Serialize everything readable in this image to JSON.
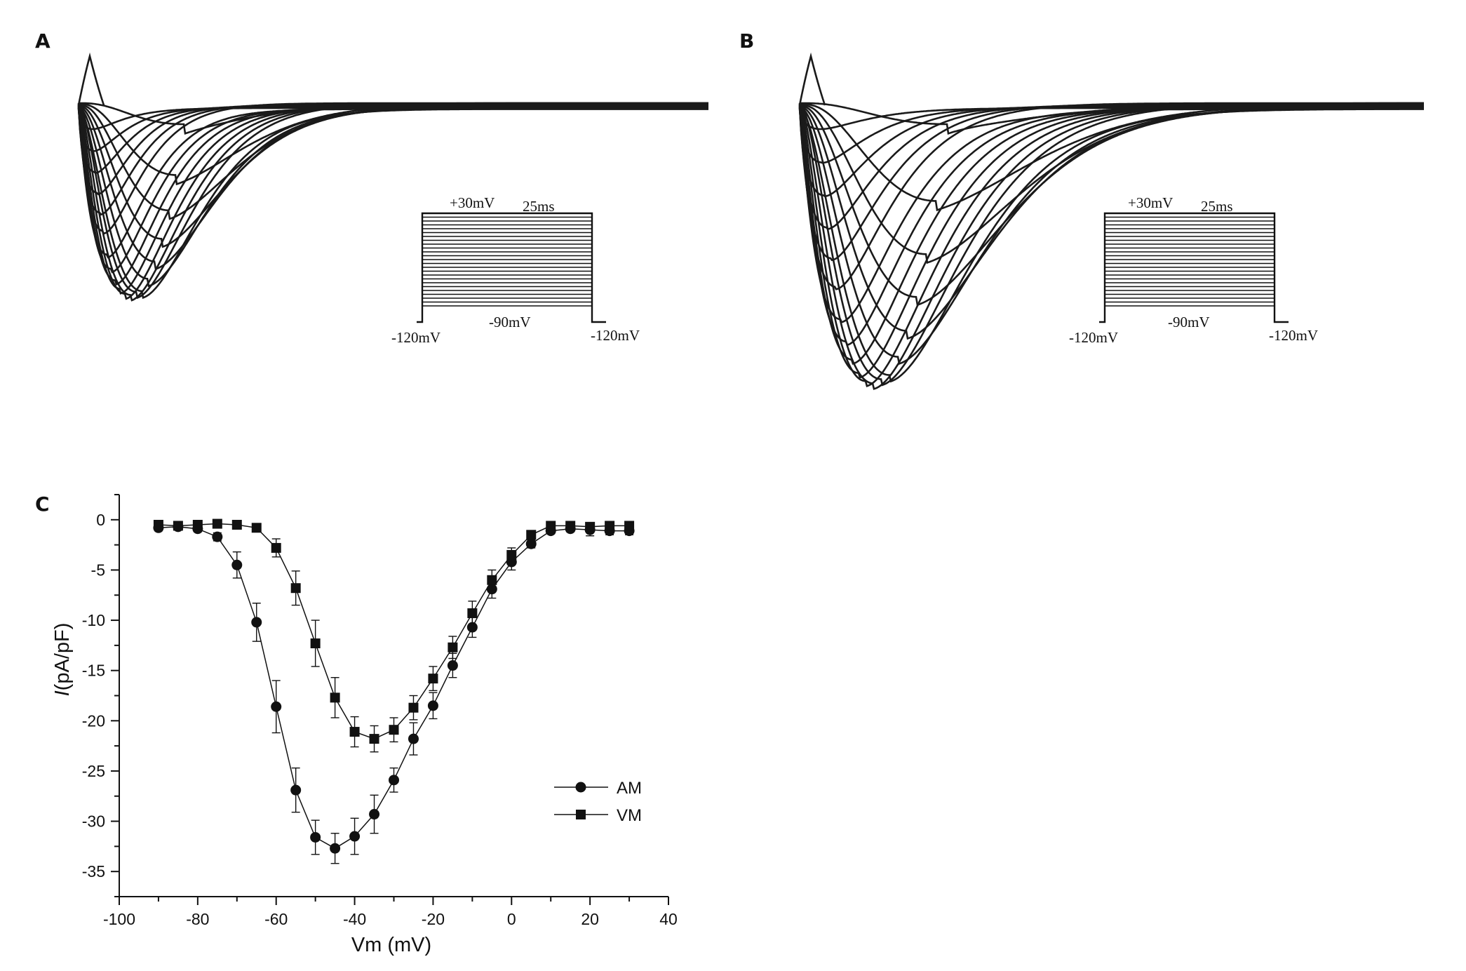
{
  "panels": {
    "A": {
      "label": "A",
      "protocol": {
        "top_label": "+30mV",
        "duration_label": "25ms",
        "hold_label": "-90mV",
        "left_label": "-120mV",
        "right_label": "-120mV"
      }
    },
    "B": {
      "label": "B",
      "protocol": {
        "top_label": "+30mV",
        "duration_label": "25ms",
        "hold_label": "-90mV",
        "left_label": "-120mV",
        "right_label": "-120mV"
      }
    },
    "C": {
      "label": "C"
    }
  },
  "chart_data": {
    "type": "scatter",
    "title": "",
    "xlabel": "Vm (mV)",
    "ylabel_italic": "I",
    "ylabel_rest": "(pA/pF)",
    "xlim": [
      -100,
      40
    ],
    "ylim": [
      -37.5,
      2.5
    ],
    "xticks": [
      -100,
      -80,
      -60,
      -40,
      -20,
      0,
      20,
      40
    ],
    "yticks": [
      0,
      -5,
      -10,
      -15,
      -20,
      -25,
      -30,
      -35
    ],
    "legend_position": "lower-right",
    "series": [
      {
        "name": "AM",
        "marker": "circle",
        "x": [
          -90,
          -85,
          -80,
          -75,
          -70,
          -65,
          -60,
          -55,
          -50,
          -45,
          -40,
          -35,
          -30,
          -25,
          -20,
          -15,
          -10,
          -5,
          0,
          5,
          10,
          15,
          20,
          25,
          30
        ],
        "y": [
          -0.8,
          -0.7,
          -0.9,
          -1.7,
          -4.5,
          -10.2,
          -18.6,
          -26.9,
          -31.6,
          -32.7,
          -31.5,
          -29.3,
          -25.9,
          -21.8,
          -18.5,
          -14.5,
          -10.7,
          -6.9,
          -4.2,
          -2.4,
          -1.1,
          -0.9,
          -1.0,
          -1.1,
          -1.1
        ],
        "err": [
          0.3,
          0.3,
          0.3,
          0.4,
          1.3,
          1.9,
          2.6,
          2.2,
          1.7,
          1.5,
          1.8,
          1.9,
          1.2,
          1.6,
          1.3,
          1.2,
          1.0,
          0.9,
          0.8,
          0.4,
          0.3,
          0.3,
          0.6,
          0.4,
          0.4
        ]
      },
      {
        "name": "VM",
        "marker": "square",
        "x": [
          -90,
          -85,
          -80,
          -75,
          -70,
          -65,
          -60,
          -55,
          -50,
          -45,
          -40,
          -35,
          -30,
          -25,
          -20,
          -15,
          -10,
          -5,
          0,
          5,
          10,
          15,
          20,
          25,
          30
        ],
        "y": [
          -0.5,
          -0.6,
          -0.5,
          -0.4,
          -0.5,
          -0.8,
          -2.8,
          -6.8,
          -12.3,
          -17.7,
          -21.1,
          -21.8,
          -20.9,
          -18.7,
          -15.8,
          -12.7,
          -9.3,
          -6.0,
          -3.5,
          -1.5,
          -0.6,
          -0.6,
          -0.7,
          -0.6,
          -0.6
        ],
        "err": [
          0.2,
          0.2,
          0.2,
          0.2,
          0.2,
          0.2,
          0.9,
          1.7,
          2.3,
          2.0,
          1.5,
          1.3,
          1.2,
          1.2,
          1.2,
          1.1,
          1.2,
          1.0,
          0.7,
          0.4,
          0.3,
          0.3,
          0.3,
          0.3,
          0.3
        ]
      }
    ]
  }
}
